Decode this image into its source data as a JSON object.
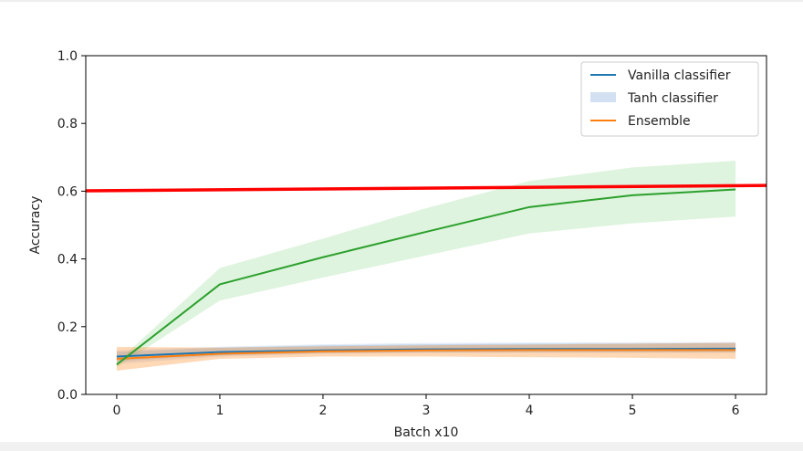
{
  "chart_data": {
    "type": "line",
    "xlabel": "Batch x10",
    "ylabel": "Accuracy",
    "xlim": [
      -0.3,
      6.3
    ],
    "ylim": [
      0.0,
      1.0
    ],
    "x_ticks": [
      0,
      1,
      2,
      3,
      4,
      5,
      6
    ],
    "x_tick_labels": [
      "0",
      "1",
      "2",
      "3",
      "4",
      "5",
      "6"
    ],
    "y_ticks": [
      0.0,
      0.2,
      0.4,
      0.6,
      0.8,
      1.0
    ],
    "y_tick_labels": [
      "0.0",
      "0.2",
      "0.4",
      "0.6",
      "0.8",
      "1.0"
    ],
    "grid": false,
    "legend_position": "top-right",
    "x": [
      0,
      1,
      2,
      3,
      4,
      5,
      6
    ],
    "series": [
      {
        "name": "Vanilla classifier",
        "legend_style": "line",
        "color": "#1f77b4",
        "values": [
          0.112,
          0.125,
          0.13,
          0.133,
          0.134,
          0.134,
          0.135
        ],
        "band_lower": [
          0.098,
          0.115,
          0.122,
          0.124,
          0.124,
          0.124,
          0.124
        ],
        "band_upper": [
          0.125,
          0.138,
          0.145,
          0.148,
          0.15,
          0.15,
          0.152
        ]
      },
      {
        "name": "Tanh classifier",
        "legend_style": "band",
        "color": "#aec7e8",
        "values": [
          0.108,
          0.124,
          0.131,
          0.134,
          0.136,
          0.136,
          0.137
        ],
        "band_lower": [
          0.09,
          0.112,
          0.12,
          0.122,
          0.123,
          0.123,
          0.123
        ],
        "band_upper": [
          0.13,
          0.141,
          0.148,
          0.152,
          0.153,
          0.154,
          0.155
        ]
      },
      {
        "name": "Ensemble",
        "legend_style": "line",
        "color": "#ff7f0e",
        "values": [
          0.105,
          0.12,
          0.127,
          0.13,
          0.131,
          0.131,
          0.131
        ],
        "band_lower": [
          0.07,
          0.105,
          0.112,
          0.112,
          0.11,
          0.108,
          0.105
        ],
        "band_upper": [
          0.14,
          0.138,
          0.142,
          0.145,
          0.147,
          0.15,
          0.152
        ]
      },
      {
        "name": "",
        "legend_style": "none",
        "color": "#2ca02c",
        "values": [
          0.088,
          0.325,
          0.405,
          0.48,
          0.553,
          0.588,
          0.605
        ],
        "band_lower": [
          0.08,
          0.277,
          0.345,
          0.41,
          0.475,
          0.505,
          0.525
        ],
        "band_upper": [
          0.095,
          0.373,
          0.46,
          0.55,
          0.63,
          0.67,
          0.69
        ]
      }
    ],
    "reference_line": {
      "color": "#ff0000",
      "x": [
        -0.3,
        6.3
      ],
      "y": [
        0.601,
        0.617
      ]
    }
  }
}
